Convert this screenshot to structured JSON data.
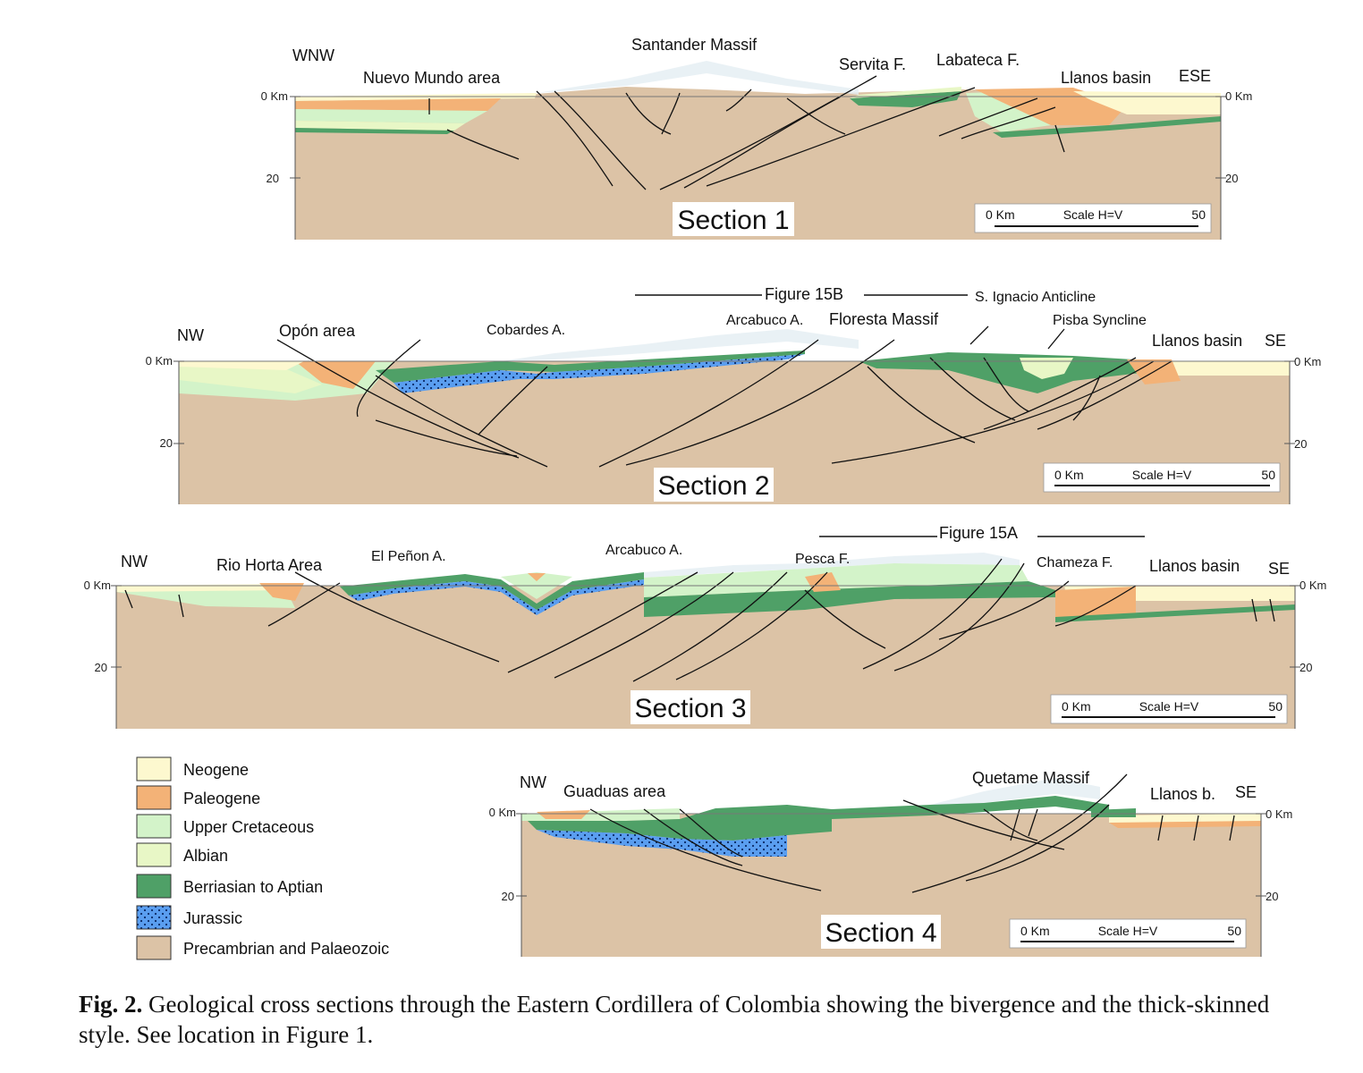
{
  "sections": [
    {
      "title": "Section 1",
      "dir_left": "WNW",
      "dir_right": "ESE",
      "depth_top_left": "0 Km",
      "depth_top_right": "0 Km",
      "depth_20_left": "20",
      "depth_20_right": "20",
      "scale": {
        "start": "0 Km",
        "label": "Scale H=V",
        "end": "50"
      },
      "labels": [
        "Nuevo Mundo area",
        "Santander Massif",
        "Servita F.",
        "Labateca F.",
        "Llanos basin"
      ]
    },
    {
      "title": "Section 2",
      "dir_left": "NW",
      "dir_right": "SE",
      "depth_top_left": "0 Km",
      "depth_top_right": "0 Km",
      "depth_20_left": "20",
      "depth_20_right": "20",
      "scale": {
        "start": "0 Km",
        "label": "Scale H=V",
        "end": "50"
      },
      "labels": [
        "Opón area",
        "Cobardes A.",
        "Figure 15B",
        "Arcabuco A.",
        "Floresta Massif",
        "S. Ignacio Anticline",
        "Pisba Syncline",
        "Llanos basin"
      ]
    },
    {
      "title": "Section 3",
      "dir_left": "NW",
      "dir_right": "SE",
      "depth_top_left": "0 Km",
      "depth_top_right": "0 Km",
      "depth_20_left": "20",
      "depth_20_right": "20",
      "scale": {
        "start": "0 Km",
        "label": "Scale H=V",
        "end": "50"
      },
      "labels": [
        "Rio Horta Area",
        "El Peñon A.",
        "Arcabuco A.",
        "Figure 15A",
        "Pesca F.",
        "Chameza F.",
        "Llanos basin"
      ]
    },
    {
      "title": "Section 4",
      "dir_left": "NW",
      "dir_right": "SE",
      "depth_top_left": "0 Km",
      "depth_top_right": "0 Km",
      "depth_20_left": "20",
      "depth_20_right": "20",
      "scale": {
        "start": "0 Km",
        "label": "Scale H=V",
        "end": "50"
      },
      "labels": [
        "Guaduas area",
        "Quetame Massif",
        "Llanos b."
      ]
    }
  ],
  "legend": [
    {
      "label": "Neogene",
      "color": "#fdf8cf"
    },
    {
      "label": "Paleogene",
      "color": "#f3b277"
    },
    {
      "label": "Upper Cretaceous",
      "color": "#d3f3c9"
    },
    {
      "label": "Albian",
      "color": "#e8f7c6"
    },
    {
      "label": "Berriasian to Aptian",
      "color": "#4fa067"
    },
    {
      "label": "Jurassic",
      "color": "#5a9ef0"
    },
    {
      "label": "Precambrian and Palaeozoic",
      "color": "#dcc3a6"
    }
  ],
  "caption": {
    "label": "Fig. 2.",
    "text": "Geological cross sections through the Eastern Cordillera of Colombia showing the bivergence and the thick-skinned style. See location in Figure 1."
  }
}
